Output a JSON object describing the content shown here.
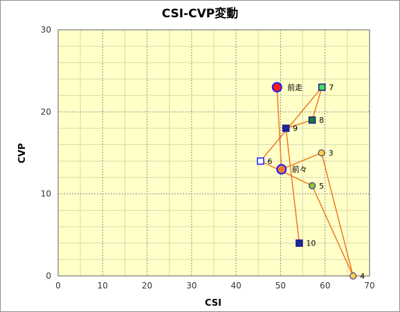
{
  "chart_data": {
    "type": "scatter",
    "title": "CSI-CVP変動",
    "xlabel": "CSI",
    "ylabel": "CVP",
    "xlim": [
      0,
      70
    ],
    "ylim": [
      0,
      30
    ],
    "xticks": [
      "0",
      "10",
      "20",
      "30",
      "40",
      "50",
      "60",
      "70"
    ],
    "yticks": [
      "0",
      "10",
      "20",
      "30"
    ],
    "grid": true,
    "background": "#ffffc8",
    "line_color": "#f07820",
    "path_order": [
      "前走",
      "前々",
      "3",
      "4",
      "5",
      "6",
      "7",
      "8",
      "9",
      "10"
    ],
    "points": [
      {
        "label": "前走",
        "x": 49.2,
        "y": 23.0,
        "marker": "circle-large",
        "fill": "#ff1a1a",
        "stroke": "#1a1aff"
      },
      {
        "label": "前々",
        "x": 50.2,
        "y": 13.0,
        "marker": "circle-large",
        "fill": "#f07828",
        "stroke": "#1a1aff"
      },
      {
        "label": "3",
        "x": 59.2,
        "y": 15.0,
        "marker": "circle",
        "fill": "#ffd040",
        "stroke": "#1a1a8c"
      },
      {
        "label": "4",
        "x": 66.3,
        "y": 0.0,
        "marker": "circle",
        "fill": "#ffd040",
        "stroke": "#1a1a8c"
      },
      {
        "label": "5",
        "x": 57.1,
        "y": 11.0,
        "marker": "circle",
        "fill": "#90c030",
        "stroke": "#1a1a8c"
      },
      {
        "label": "6",
        "x": 45.5,
        "y": 14.0,
        "marker": "square",
        "fill": "#ffffff",
        "stroke": "#1a1aff"
      },
      {
        "label": "7",
        "x": 59.3,
        "y": 23.0,
        "marker": "square",
        "fill": "#40e060",
        "stroke": "#1a1a8c"
      },
      {
        "label": "8",
        "x": 57.1,
        "y": 19.0,
        "marker": "square",
        "fill": "#1a7a3a",
        "stroke": "#1a1a8c"
      },
      {
        "label": "9",
        "x": 51.2,
        "y": 18.0,
        "marker": "square",
        "fill": "#1a2a9a",
        "stroke": "#1a1a8c"
      },
      {
        "label": "10",
        "x": 54.2,
        "y": 4.0,
        "marker": "square",
        "fill": "#1a2a9a",
        "stroke": "#1a1a8c"
      }
    ]
  }
}
